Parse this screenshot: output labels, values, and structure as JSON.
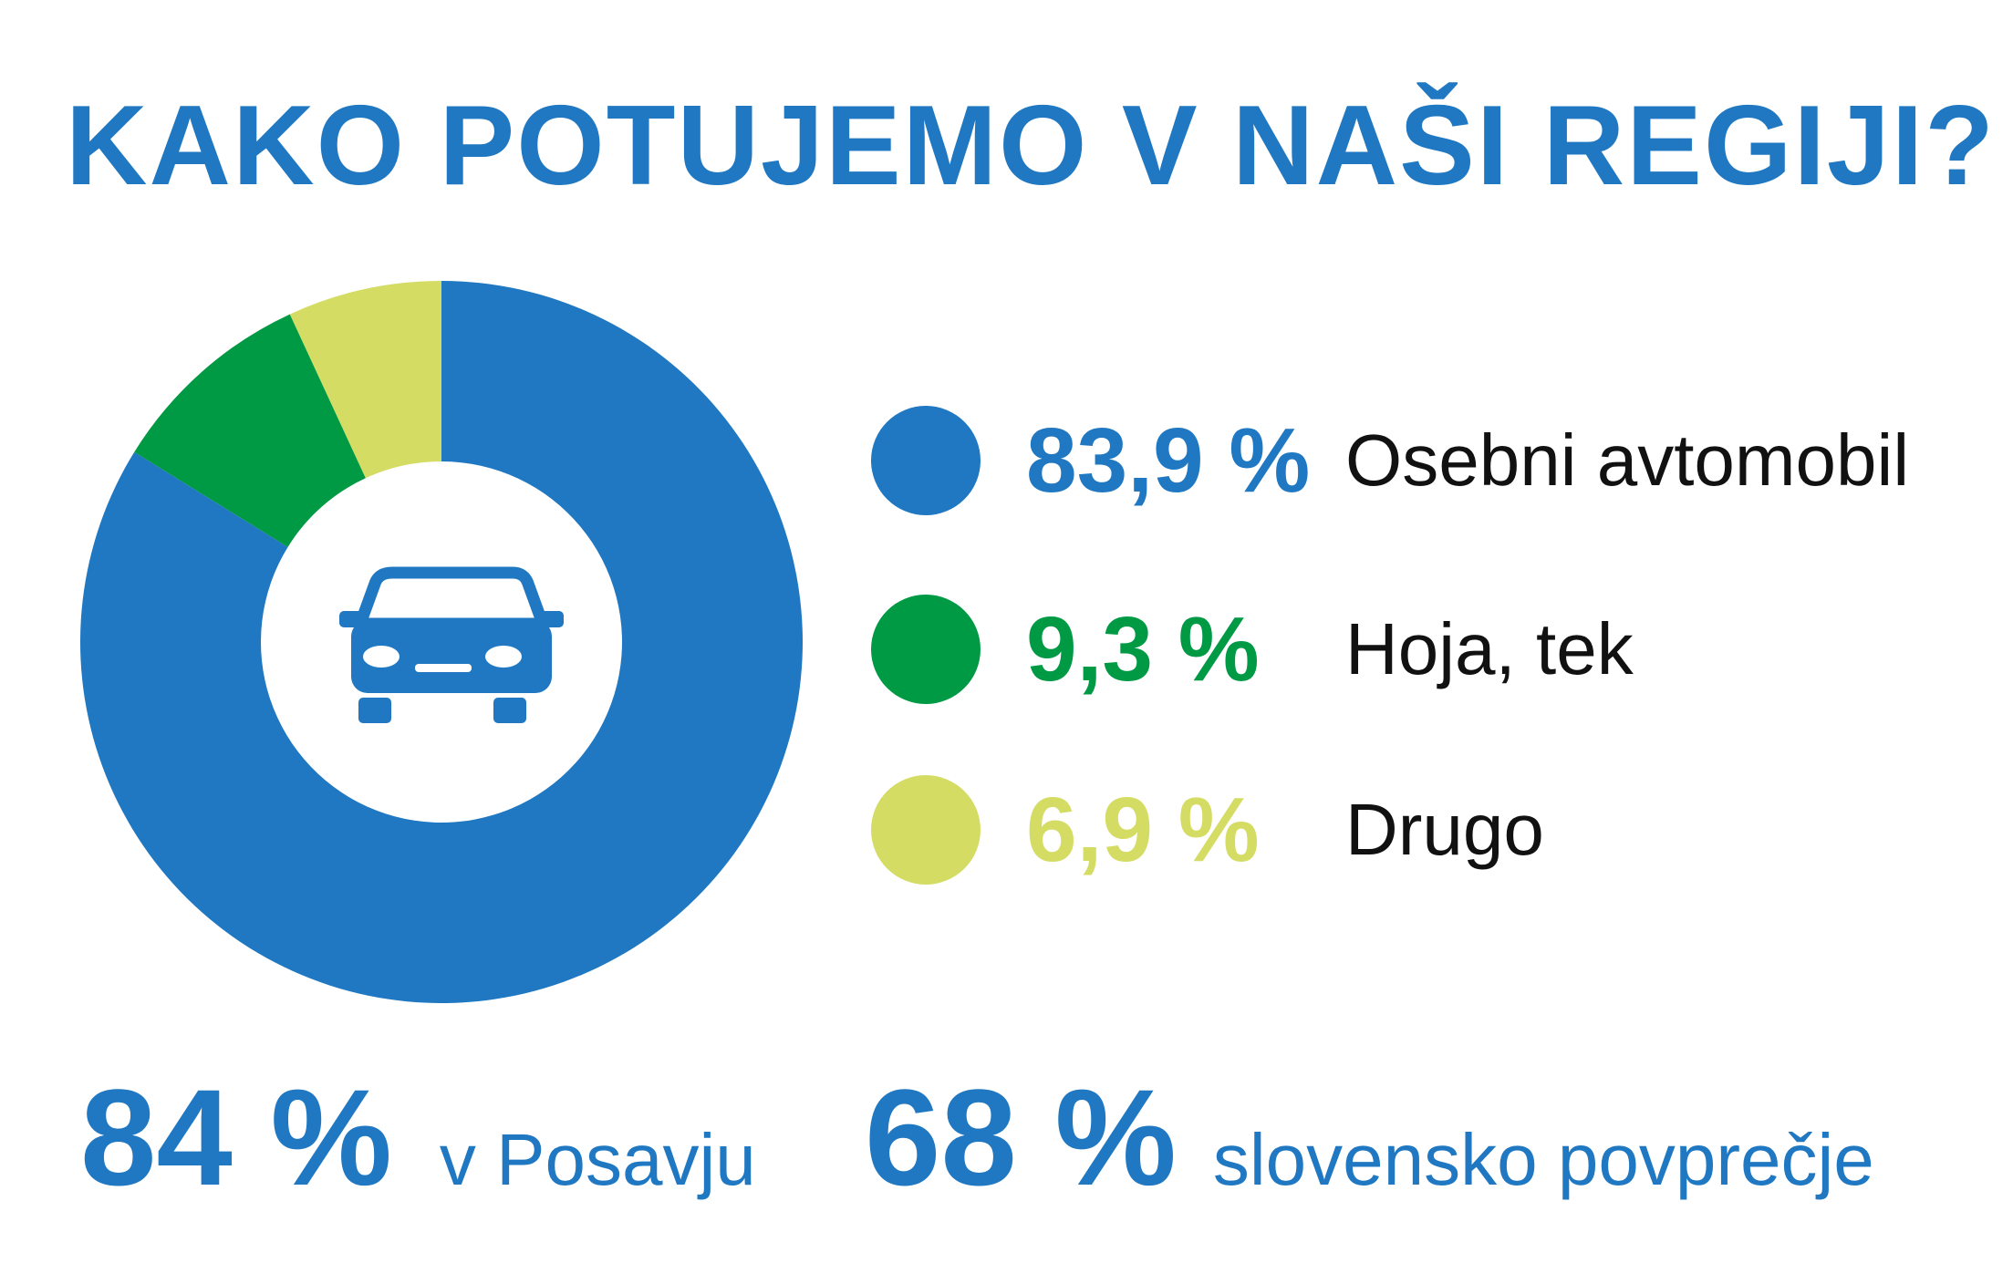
{
  "title": "KAKO POTUJEMO V NAŠI REGIJI?",
  "center_icon": "car-icon",
  "chart_data": {
    "type": "pie",
    "style": "donut",
    "start": "top",
    "direction": "clockwise",
    "slices": [
      {
        "label": "Osebni avtomobil",
        "value": 83.9,
        "value_label": "83,9 %",
        "color": "#1f78c1"
      },
      {
        "label": "Hoja, tek",
        "value": 9.3,
        "value_label": "9,3 %",
        "color": "#009a44"
      },
      {
        "label": "Drugo",
        "value": 6.9,
        "value_label": "6,9 %",
        "color": "#d4dc64"
      }
    ],
    "legend_placement": "right"
  },
  "stats": [
    {
      "value": "84 %",
      "label": "v Posavju"
    },
    {
      "value": "68 %",
      "label": "slovensko povprečje"
    }
  ]
}
